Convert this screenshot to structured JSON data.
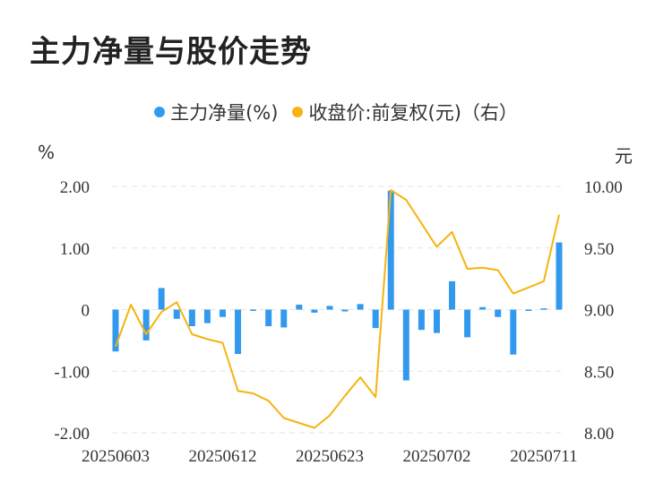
{
  "title": "主力净量与股价走势",
  "legend": {
    "net": "主力净量(%)",
    "price": "收盘价:前复权(元)（右）"
  },
  "colors": {
    "bar": "#3399ee",
    "line": "#f5b40f",
    "grid": "#e3e3e3"
  },
  "chart_data": {
    "type": "bar+line",
    "ylabel_left": "%",
    "ylabel_right": "元",
    "y_left_range": [
      -2,
      2
    ],
    "y_right_range": [
      8,
      10
    ],
    "y_left_ticks": [
      "2.00",
      "1.00",
      "0",
      "-1.00",
      "-2.00"
    ],
    "y_right_ticks": [
      "10.00",
      "9.50",
      "9.00",
      "8.50",
      "8.00"
    ],
    "x_tick_labels": [
      "20250603",
      "20250612",
      "20250623",
      "20250702",
      "20250711"
    ],
    "x_tick_index": [
      0,
      7,
      14,
      21,
      28
    ],
    "series": [
      {
        "name": "主力净量(%)",
        "kind": "bar",
        "values": [
          -0.68,
          0,
          -0.5,
          0.35,
          -0.15,
          -0.27,
          -0.22,
          -0.12,
          -0.72,
          -0.02,
          -0.27,
          -0.29,
          0.08,
          -0.05,
          0.06,
          -0.03,
          0.09,
          -0.3,
          1.93,
          -1.15,
          -0.33,
          -0.38,
          0.46,
          -0.45,
          0.04,
          -0.12,
          -0.73,
          -0.02,
          0.02,
          1.09
        ]
      },
      {
        "name": "收盘价:前复权(元)（右）",
        "kind": "line",
        "values": [
          8.7,
          9.04,
          8.8,
          8.98,
          9.06,
          8.8,
          8.76,
          8.73,
          8.34,
          8.32,
          8.26,
          8.12,
          8.08,
          8.04,
          8.14,
          8.3,
          8.45,
          8.29,
          9.97,
          9.89,
          9.7,
          9.51,
          9.63,
          9.33,
          9.34,
          9.32,
          9.13,
          9.18,
          9.23,
          9.77
        ]
      }
    ]
  }
}
